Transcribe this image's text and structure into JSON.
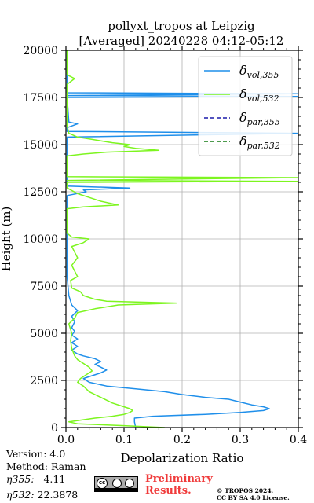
{
  "chart_data": {
    "type": "line",
    "title_line1": "pollyxt_tropos at Leipzig",
    "title_line2": "[Averaged] 20240228 04:12-05:12",
    "xlabel": "Depolarization Ratio",
    "ylabel": "Height (m)",
    "xlim": [
      0,
      0.4
    ],
    "ylim": [
      0,
      20000
    ],
    "xticks": [
      "0.0",
      "0.1",
      "0.2",
      "0.3",
      "0.4"
    ],
    "yticks": [
      "0",
      "2500",
      "5000",
      "7500",
      "10000",
      "12500",
      "15000",
      "17500",
      "20000"
    ],
    "grid": true,
    "legend_position": "top-right",
    "series": [
      {
        "key": "vol355",
        "color": "#1f8fea",
        "style": "solid",
        "points": [
          [
            0.12,
            0
          ],
          [
            0.118,
            300
          ],
          [
            0.118,
            500
          ],
          [
            0.15,
            600
          ],
          [
            0.24,
            700
          ],
          [
            0.3,
            800
          ],
          [
            0.34,
            900
          ],
          [
            0.35,
            1000
          ],
          [
            0.34,
            1100
          ],
          [
            0.32,
            1200
          ],
          [
            0.3,
            1350
          ],
          [
            0.28,
            1500
          ],
          [
            0.24,
            1600
          ],
          [
            0.2,
            1750
          ],
          [
            0.17,
            1900
          ],
          [
            0.12,
            2050
          ],
          [
            0.07,
            2200
          ],
          [
            0.04,
            2400
          ],
          [
            0.03,
            2600
          ],
          [
            0.045,
            2750
          ],
          [
            0.06,
            2900
          ],
          [
            0.07,
            3050
          ],
          [
            0.06,
            3200
          ],
          [
            0.05,
            3350
          ],
          [
            0.06,
            3500
          ],
          [
            0.05,
            3650
          ],
          [
            0.03,
            3800
          ],
          [
            0.02,
            3900
          ],
          [
            0.01,
            4100
          ],
          [
            0.02,
            4300
          ],
          [
            0.01,
            4500
          ],
          [
            0.02,
            4700
          ],
          [
            0.01,
            4900
          ],
          [
            0.015,
            5100
          ],
          [
            0.01,
            5300
          ],
          [
            0.015,
            5600
          ],
          [
            0.01,
            5900
          ],
          [
            0.02,
            6200
          ],
          [
            0.01,
            6500
          ],
          [
            0.005,
            7000
          ],
          [
            0.002,
            8000
          ],
          [
            0.002,
            12300
          ],
          [
            0.035,
            12500
          ],
          [
            0.03,
            12600
          ],
          [
            0.11,
            12700
          ],
          [
            0.002,
            12800
          ],
          [
            0.002,
            15400
          ],
          [
            0.4,
            15600
          ],
          [
            0.002,
            15700
          ],
          [
            0.002,
            15900
          ],
          [
            0.02,
            16100
          ],
          [
            0.005,
            16200
          ],
          [
            0.002,
            17500
          ],
          [
            0.4,
            17550
          ],
          [
            0.002,
            17600
          ],
          [
            0.4,
            17700
          ],
          [
            0.002,
            17750
          ],
          [
            0.002,
            20000
          ]
        ]
      },
      {
        "key": "vol532",
        "color": "#7df51f",
        "style": "solid",
        "points": [
          [
            0.17,
            0
          ],
          [
            0.1,
            100
          ],
          [
            0.02,
            200
          ],
          [
            0.005,
            300
          ],
          [
            0.05,
            500
          ],
          [
            0.08,
            600
          ],
          [
            0.1,
            700
          ],
          [
            0.11,
            800
          ],
          [
            0.115,
            900
          ],
          [
            0.11,
            1000
          ],
          [
            0.1,
            1100
          ],
          [
            0.08,
            1300
          ],
          [
            0.06,
            1600
          ],
          [
            0.04,
            1900
          ],
          [
            0.03,
            2200
          ],
          [
            0.02,
            2400
          ],
          [
            0.025,
            2600
          ],
          [
            0.035,
            2800
          ],
          [
            0.045,
            3000
          ],
          [
            0.04,
            3200
          ],
          [
            0.03,
            3400
          ],
          [
            0.02,
            3600
          ],
          [
            0.015,
            3800
          ],
          [
            0.01,
            4200
          ],
          [
            0.008,
            4600
          ],
          [
            0.01,
            5000
          ],
          [
            0.005,
            5500
          ],
          [
            0.015,
            5800
          ],
          [
            0.02,
            6100
          ],
          [
            0.05,
            6300
          ],
          [
            0.09,
            6500
          ],
          [
            0.19,
            6600
          ],
          [
            0.07,
            6700
          ],
          [
            0.05,
            6800
          ],
          [
            0.03,
            7000
          ],
          [
            0.025,
            7200
          ],
          [
            0.01,
            7400
          ],
          [
            0.008,
            7800
          ],
          [
            0.02,
            8000
          ],
          [
            0.015,
            8300
          ],
          [
            0.01,
            8600
          ],
          [
            0.02,
            9000
          ],
          [
            0.015,
            9300
          ],
          [
            0.01,
            9600
          ],
          [
            0.03,
            9800
          ],
          [
            0.04,
            10000
          ],
          [
            0.01,
            10100
          ],
          [
            0.002,
            10300
          ],
          [
            0.002,
            11600
          ],
          [
            0.03,
            11700
          ],
          [
            0.09,
            11800
          ],
          [
            0.06,
            12000
          ],
          [
            0.04,
            12200
          ],
          [
            0.02,
            12400
          ],
          [
            0.002,
            12700
          ],
          [
            0.002,
            13000
          ],
          [
            0.4,
            13050
          ],
          [
            0.002,
            13100
          ],
          [
            0.4,
            13250
          ],
          [
            0.002,
            13300
          ],
          [
            0.002,
            14400
          ],
          [
            0.03,
            14500
          ],
          [
            0.07,
            14600
          ],
          [
            0.16,
            14700
          ],
          [
            0.12,
            14800
          ],
          [
            0.1,
            14900
          ],
          [
            0.11,
            15000
          ],
          [
            0.08,
            15100
          ],
          [
            0.06,
            15200
          ],
          [
            0.04,
            15300
          ],
          [
            0.02,
            15400
          ],
          [
            0.005,
            15600
          ],
          [
            0.002,
            16000
          ],
          [
            0.002,
            18200
          ],
          [
            0.015,
            18500
          ],
          [
            0.002,
            18700
          ],
          [
            0.002,
            20000
          ]
        ]
      }
    ],
    "legend": [
      {
        "symbol": "δ",
        "sub": "vol,355",
        "color": "#1f8fea",
        "dash": ""
      },
      {
        "symbol": "δ",
        "sub": "vol,532",
        "color": "#7df51f",
        "dash": ""
      },
      {
        "symbol": "δ",
        "sub": "par,355",
        "color": "#1a1aaa",
        "dash": "5,3"
      },
      {
        "symbol": "δ",
        "sub": "par,532",
        "color": "#127a12",
        "dash": "5,3"
      }
    ]
  },
  "info": {
    "version": "Version: 4.0",
    "method": "Method: Raman",
    "eta355_label": "η355:",
    "eta355_value": "4.11",
    "eta532_label": "η532:",
    "eta532_value": "22.3878"
  },
  "footer": {
    "preliminary": "Preliminary",
    "results": "Results.",
    "copyright_line1": "© TROPOS 2024.",
    "copyright_line2": "CC BY SA 4.0 License."
  }
}
